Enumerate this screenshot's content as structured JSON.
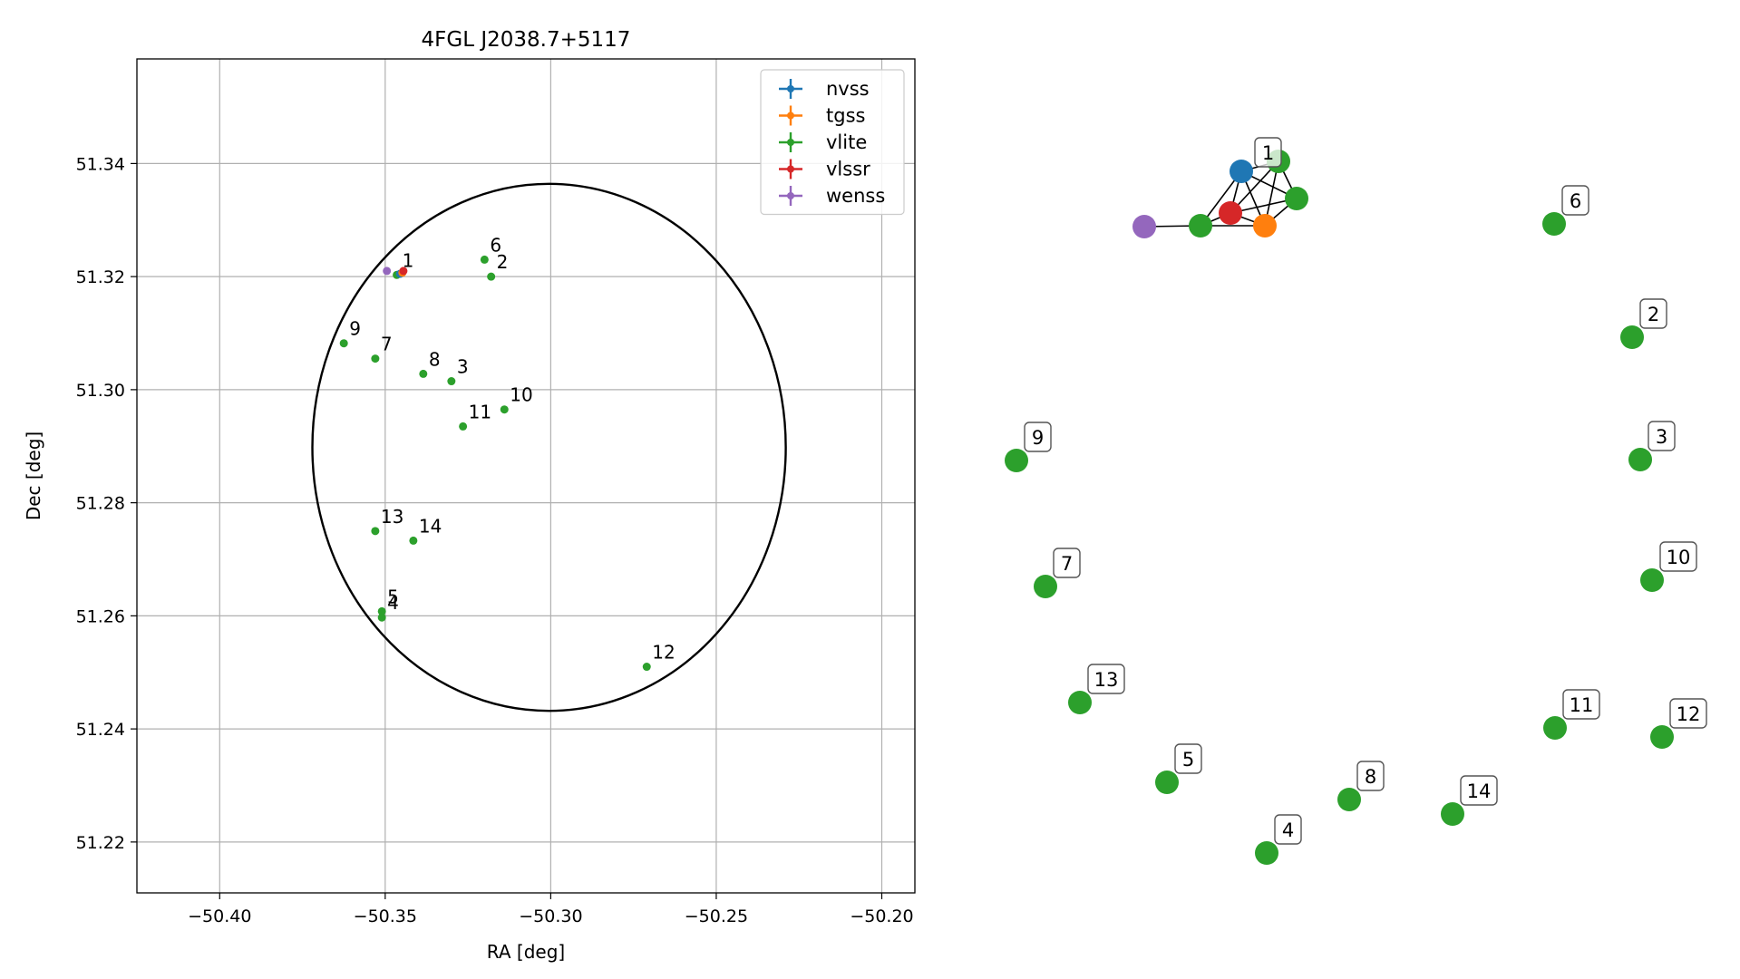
{
  "chart_data": [
    {
      "type": "scatter",
      "title": "4FGL J2038.7+5117",
      "xlabel": "RA [deg]",
      "ylabel": "Dec [deg]",
      "xlim": [
        -50.425,
        -50.19
      ],
      "ylim": [
        51.211,
        51.3585
      ],
      "xticks": [
        "−50.40",
        "−50.35",
        "−50.30",
        "−50.25",
        "−50.20"
      ],
      "xtick_values": [
        -50.4,
        -50.35,
        -50.3,
        -50.25,
        -50.2
      ],
      "yticks": [
        "51.22",
        "51.24",
        "51.26",
        "51.28",
        "51.30",
        "51.32",
        "51.34"
      ],
      "ytick_values": [
        51.22,
        51.24,
        51.26,
        51.28,
        51.3,
        51.32,
        51.34
      ],
      "grid": true,
      "legend_position": "top-right",
      "legend": [
        {
          "name": "nvss",
          "color": "#1f77b4"
        },
        {
          "name": "tgss",
          "color": "#ff7f0e"
        },
        {
          "name": "vlite",
          "color": "#2ca02c"
        },
        {
          "name": "vlssr",
          "color": "#d62728"
        },
        {
          "name": "wenss",
          "color": "#9467bd"
        }
      ],
      "ellipse": {
        "center": [
          -50.3005,
          51.2898
        ],
        "semi_axis_ra": 0.0715,
        "semi_axis_dec": 0.0466
      },
      "points": [
        {
          "survey": "vlite",
          "ra": -50.3465,
          "dec": 51.3203,
          "label": "1"
        },
        {
          "survey": "nvss",
          "ra": -50.3455,
          "dec": 51.3205,
          "label": ""
        },
        {
          "survey": "tgss",
          "ra": -50.3448,
          "dec": 51.3207,
          "label": ""
        },
        {
          "survey": "vlssr",
          "ra": -50.3445,
          "dec": 51.321,
          "label": ""
        },
        {
          "survey": "wenss",
          "ra": -50.3495,
          "dec": 51.321,
          "label": ""
        },
        {
          "survey": "vlite",
          "ra": -50.318,
          "dec": 51.32,
          "label": "2"
        },
        {
          "survey": "vlite",
          "ra": -50.33,
          "dec": 51.3015,
          "label": "3"
        },
        {
          "survey": "vlite",
          "ra": -50.351,
          "dec": 51.2597,
          "label": "4"
        },
        {
          "survey": "vlite",
          "ra": -50.351,
          "dec": 51.2608,
          "label": "5"
        },
        {
          "survey": "vlite",
          "ra": -50.32,
          "dec": 51.323,
          "label": "6"
        },
        {
          "survey": "vlite",
          "ra": -50.353,
          "dec": 51.3055,
          "label": "7"
        },
        {
          "survey": "vlite",
          "ra": -50.3385,
          "dec": 51.3028,
          "label": "8"
        },
        {
          "survey": "vlite",
          "ra": -50.3625,
          "dec": 51.3082,
          "label": "9"
        },
        {
          "survey": "vlite",
          "ra": -50.314,
          "dec": 51.2965,
          "label": "10"
        },
        {
          "survey": "vlite",
          "ra": -50.3265,
          "dec": 51.2935,
          "label": "11"
        },
        {
          "survey": "vlite",
          "ra": -50.271,
          "dec": 51.251,
          "label": "12"
        },
        {
          "survey": "vlite",
          "ra": -50.353,
          "dec": 51.275,
          "label": "13"
        },
        {
          "survey": "vlite",
          "ra": -50.3415,
          "dec": 51.2733,
          "label": "14"
        }
      ]
    },
    {
      "type": "network",
      "nodes": [
        {
          "id": "nvss",
          "color": "#1f77b4",
          "label": ""
        },
        {
          "id": "v1",
          "color": "#2ca02c",
          "label": "1"
        },
        {
          "id": "v1b",
          "color": "#2ca02c",
          "label": ""
        },
        {
          "id": "v1c",
          "color": "#2ca02c",
          "label": ""
        },
        {
          "id": "v1d",
          "color": "#2ca02c",
          "label": ""
        },
        {
          "id": "vlssr",
          "color": "#d62728",
          "label": ""
        },
        {
          "id": "tgss",
          "color": "#ff7f0e",
          "label": ""
        },
        {
          "id": "wenss",
          "color": "#9467bd",
          "label": ""
        },
        {
          "id": "n2",
          "color": "#2ca02c",
          "label": "2"
        },
        {
          "id": "n3",
          "color": "#2ca02c",
          "label": "3"
        },
        {
          "id": "n4",
          "color": "#2ca02c",
          "label": "4"
        },
        {
          "id": "n5",
          "color": "#2ca02c",
          "label": "5"
        },
        {
          "id": "n6",
          "color": "#2ca02c",
          "label": "6"
        },
        {
          "id": "n7",
          "color": "#2ca02c",
          "label": "7"
        },
        {
          "id": "n8",
          "color": "#2ca02c",
          "label": "8"
        },
        {
          "id": "n9",
          "color": "#2ca02c",
          "label": "9"
        },
        {
          "id": "n10",
          "color": "#2ca02c",
          "label": "10"
        },
        {
          "id": "n11",
          "color": "#2ca02c",
          "label": "11"
        },
        {
          "id": "n12",
          "color": "#2ca02c",
          "label": "12"
        },
        {
          "id": "n13",
          "color": "#2ca02c",
          "label": "13"
        },
        {
          "id": "n14",
          "color": "#2ca02c",
          "label": "14"
        }
      ],
      "edges": [
        [
          "wenss",
          "v1d"
        ],
        [
          "v1d",
          "vlssr"
        ],
        [
          "v1d",
          "tgss"
        ],
        [
          "v1d",
          "nvss"
        ],
        [
          "vlssr",
          "tgss"
        ],
        [
          "vlssr",
          "nvss"
        ],
        [
          "vlssr",
          "v1c"
        ],
        [
          "vlssr",
          "v1b"
        ],
        [
          "nvss",
          "tgss"
        ],
        [
          "nvss",
          "v1b"
        ],
        [
          "nvss",
          "v1c"
        ],
        [
          "tgss",
          "v1c"
        ],
        [
          "tgss",
          "v1b"
        ],
        [
          "v1b",
          "v1c"
        ]
      ]
    }
  ]
}
